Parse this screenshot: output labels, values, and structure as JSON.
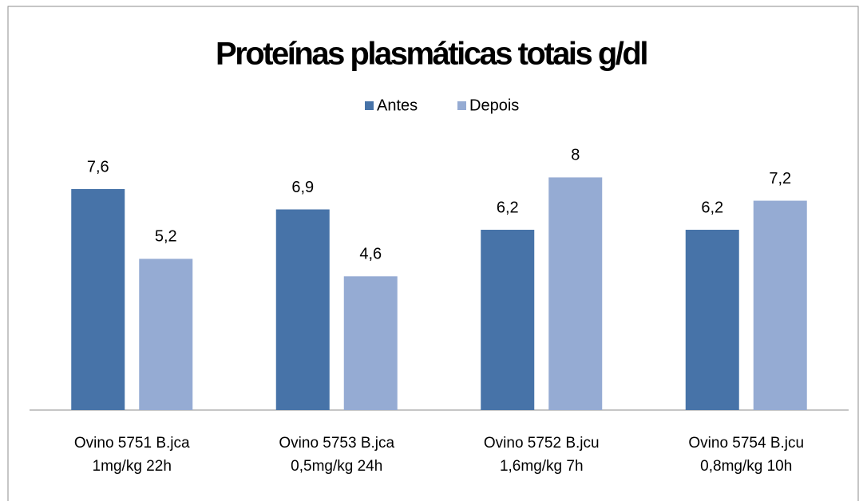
{
  "chart_data": {
    "type": "bar",
    "title": "Proteínas plasmáticas totais g/dl",
    "categories": [
      [
        "Ovino 5751 B.jca",
        "1mg/kg   22h"
      ],
      [
        "Ovino 5753 B.jca",
        "0,5mg/kg  24h"
      ],
      [
        "Ovino 5752 B.jcu",
        "1,6mg/kg   7h"
      ],
      [
        "Ovino 5754 B.jcu",
        "0,8mg/kg   10h"
      ]
    ],
    "series": [
      {
        "name": "Antes",
        "color": "#4773a8",
        "values": [
          7.6,
          6.9,
          6.2,
          6.2
        ],
        "value_labels": [
          "7,6",
          "6,9",
          "6,2",
          "6,2"
        ]
      },
      {
        "name": "Depois",
        "color": "#95abd3",
        "values": [
          5.2,
          4.6,
          8,
          7.2
        ],
        "value_labels": [
          "5,2",
          "4,6",
          "8",
          "7,2"
        ]
      }
    ],
    "ylim": [
      0,
      10
    ],
    "legend": "top"
  }
}
